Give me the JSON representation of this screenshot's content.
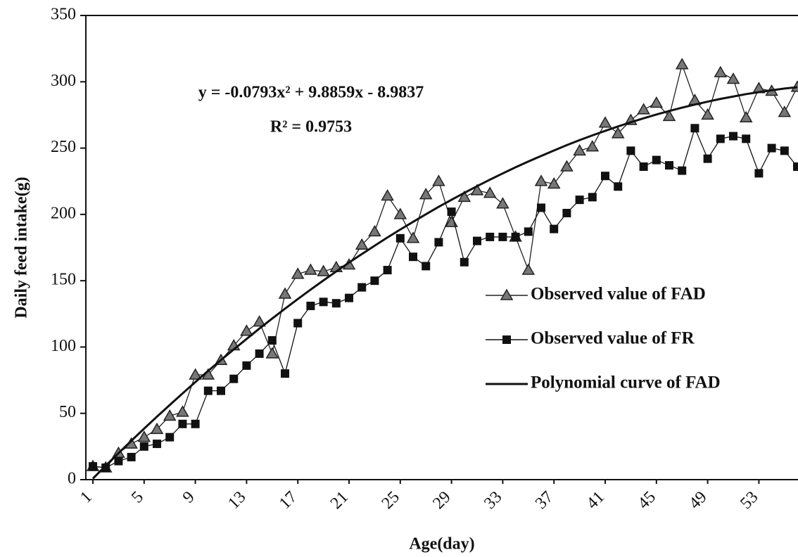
{
  "chart_data": {
    "type": "line",
    "xlabel": "Age(day)",
    "ylabel": "Daily feed intake(g)",
    "annotations": [
      "y = -0.0793x² + 9.8859x - 8.9837",
      "R² = 0.9753"
    ],
    "categories": [
      "1",
      null,
      null,
      null,
      "5",
      null,
      null,
      null,
      "9",
      null,
      null,
      null,
      "13",
      null,
      null,
      null,
      "17",
      null,
      null,
      null,
      "21",
      null,
      null,
      null,
      "25",
      null,
      null,
      null,
      "29",
      null,
      null,
      null,
      "33",
      null,
      null,
      null,
      "37",
      null,
      null,
      null,
      "41",
      null,
      null,
      null,
      "45",
      null,
      null,
      null,
      "49",
      null,
      null,
      null,
      "53",
      null,
      null,
      null
    ],
    "series": [
      {
        "name": "Observed value of FAD",
        "color": "#222222",
        "marker": "triangle",
        "values": [
          10,
          9,
          20,
          27,
          32,
          38,
          48,
          51,
          79,
          79,
          90,
          101,
          112,
          119,
          95,
          140,
          155,
          158,
          157,
          160,
          162,
          177,
          187,
          214,
          200,
          182,
          215,
          225,
          194,
          213,
          218,
          216,
          208,
          183,
          158,
          225,
          223,
          236,
          248,
          251,
          269,
          261,
          271,
          279,
          284,
          274,
          313,
          286,
          275,
          307,
          302,
          273,
          295,
          293,
          277,
          296
        ]
      },
      {
        "name": "Observed value of FR",
        "color": "#111111",
        "marker": "square",
        "values": [
          10,
          9,
          14,
          17,
          25,
          27,
          32,
          42,
          42,
          67,
          67,
          76,
          86,
          95,
          105,
          80,
          118,
          131,
          134,
          133,
          137,
          145,
          150,
          158,
          182,
          168,
          161,
          179,
          202,
          164,
          180,
          183,
          183,
          183,
          187,
          205,
          189,
          201,
          211,
          213,
          229,
          221,
          248,
          236,
          241,
          237,
          233,
          265,
          242,
          257,
          259,
          257,
          231,
          250,
          248,
          236
        ]
      },
      {
        "name": "Polynomial curve of FAD",
        "color": "#111111",
        "marker": null,
        "values": [
          0.8,
          10.5,
          20.0,
          29.3,
          38.5,
          47.5,
          56.3,
          65.0,
          73.6,
          82.0,
          90.2,
          98.2,
          106.1,
          113.9,
          121.5,
          128.9,
          136.2,
          143.3,
          150.2,
          157.0,
          163.7,
          170.1,
          176.4,
          182.6,
          188.6,
          194.4,
          200.1,
          205.7,
          211.0,
          216.2,
          221.3,
          226.2,
          230.9,
          235.5,
          239.9,
          244.1,
          248.2,
          252.2,
          256.0,
          259.6,
          263.0,
          266.3,
          269.5,
          272.5,
          275.3,
          278.0,
          280.5,
          282.8,
          285.0,
          287.1,
          288.9,
          290.7,
          292.2,
          293.6,
          294.9,
          295.9
        ]
      }
    ],
    "ylim": [
      0,
      350
    ],
    "yticks": [
      0,
      50,
      100,
      150,
      200,
      250,
      300,
      350
    ],
    "grid": false
  }
}
